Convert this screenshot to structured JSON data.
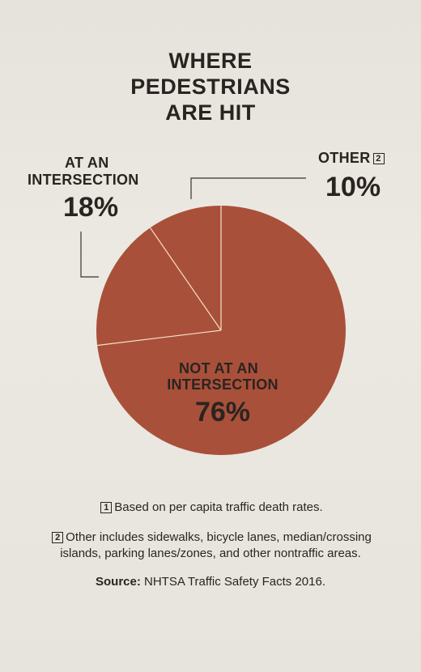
{
  "chart_data": {
    "type": "pie",
    "title_lines": [
      "WHERE",
      "PEDESTRIANS",
      "ARE HIT"
    ],
    "slices": [
      {
        "label_lines": [
          "NOT AT AN",
          "INTERSECTION"
        ],
        "value": 76,
        "value_text": "76%"
      },
      {
        "label_lines": [
          "AT AN",
          "INTERSECTION"
        ],
        "value": 18,
        "value_text": "18%"
      },
      {
        "label": "OTHER",
        "footnote_marker": "2",
        "value": 10,
        "value_text": "10%"
      }
    ],
    "colors": {
      "slice": "#a9503a",
      "separator": "#f2e3c8",
      "leader": "#3a3330"
    }
  },
  "footnotes": {
    "fn1_marker": "1",
    "fn1_text": "Based on per capita traffic death rates.",
    "fn2_marker": "2",
    "fn2_line1": "Other includes sidewalks, bicycle lanes, median/crossing",
    "fn2_line2": "islands, parking lanes/zones, and other nontraffic areas.",
    "source_label": "Source:",
    "source_text": "NHTSA Traffic Safety Facts 2016."
  }
}
